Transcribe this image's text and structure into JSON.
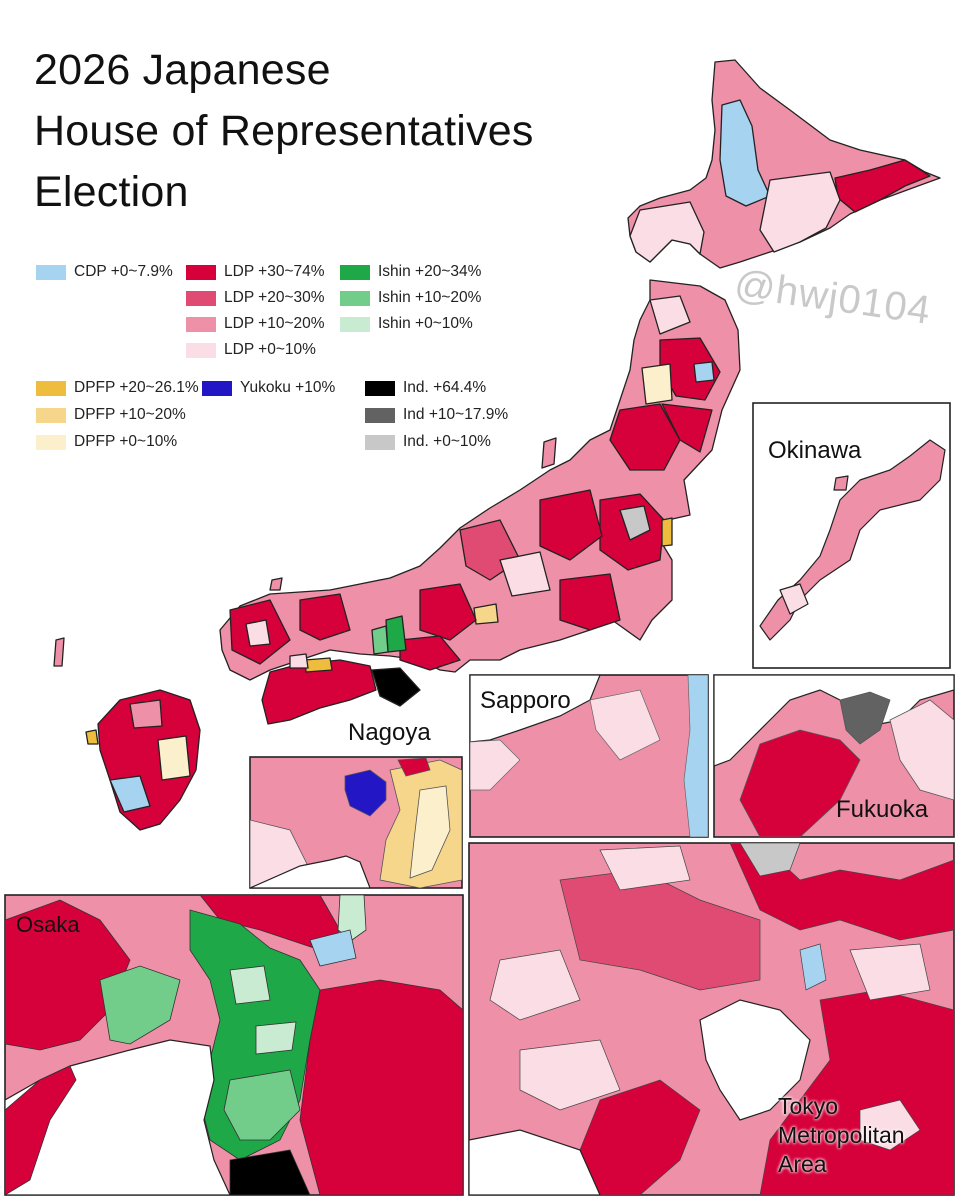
{
  "title": {
    "line1": "2026 Japanese",
    "line2": "House of Representatives",
    "line3": "Election"
  },
  "watermark": "@hwj0104",
  "colors": {
    "cdp": "#a6d3f0",
    "ldp_30_74": "#d6003a",
    "ldp_20_30": "#e04b73",
    "ldp_10_20": "#ef90a9",
    "ldp_0_10": "#fbdde6",
    "ishin_20_34": "#1ea847",
    "ishin_10_20": "#72cd8a",
    "ishin_0_10": "#c9ebd1",
    "dpfp_20_26": "#efbd3d",
    "dpfp_10_20": "#f6d68a",
    "dpfp_0_10": "#fcefcc",
    "yukoku_10": "#2316c4",
    "ind_64": "#000000",
    "ind_10_17": "#626262",
    "ind_0_10": "#c8c8c8",
    "border": "#222222",
    "background": "#ffffff"
  },
  "legend": {
    "cdp_0_7": "CDP +0~7.9%",
    "ldp_30_74": "LDP +30~74%",
    "ldp_20_30": "LDP +20~30%",
    "ldp_10_20": "LDP +10~20%",
    "ldp_0_10": "LDP +0~10%",
    "ishin_20_34": "Ishin +20~34%",
    "ishin_10_20": "Ishin +10~20%",
    "ishin_0_10": "Ishin +0~10%",
    "dpfp_20_26": "DPFP +20~26.1%",
    "dpfp_10_20": "DPFP +10~20%",
    "dpfp_0_10": "DPFP +0~10%",
    "yukoku_10": "Yukoku +10%",
    "ind_64": "Ind. +64.4%",
    "ind_10_17": "Ind +10~17.9%",
    "ind_0_10": "Ind. +0~10%"
  },
  "insets": {
    "okinawa": "Okinawa",
    "nagoya": "Nagoya",
    "sapporo": "Sapporo",
    "fukuoka": "Fukuoka",
    "osaka": "Osaka",
    "tokyo_line1": "Tokyo",
    "tokyo_line2": "Metropolitan",
    "tokyo_line3": "Area"
  }
}
